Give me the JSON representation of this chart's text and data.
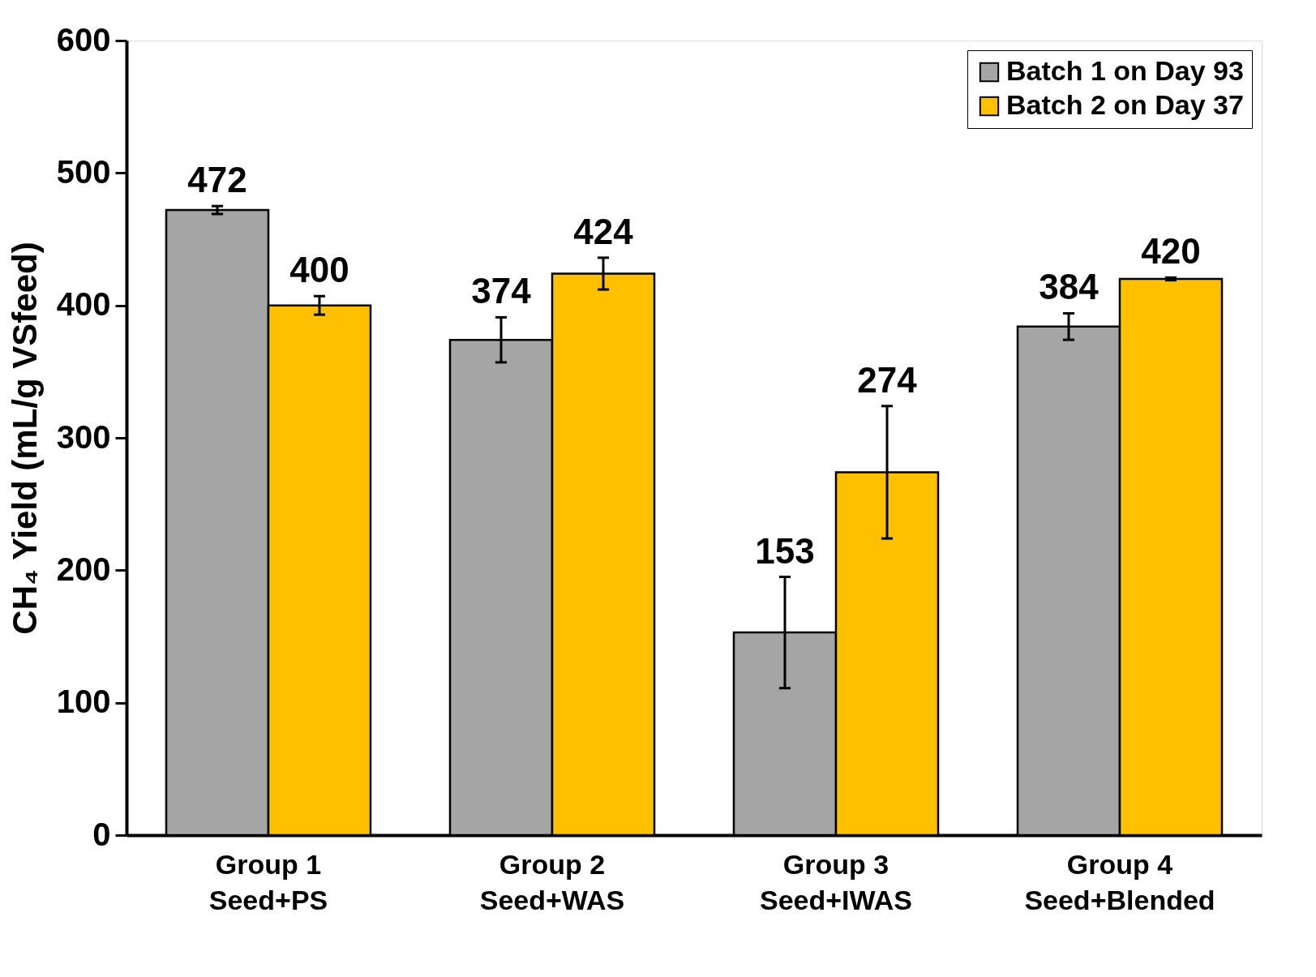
{
  "chart_data": {
    "type": "bar",
    "ylabel": "CH₄ Yield (mL/g VSfeed)",
    "categories": [
      "Group 1\nSeed+PS",
      "Group 2\nSeed+WAS",
      "Group 3\nSeed+IWAS",
      "Group 4\nSeed+Blended"
    ],
    "series": [
      {
        "name": "Batch 1 on Day 93",
        "color": "#a5a5a5",
        "values": [
          472,
          374,
          153,
          384
        ],
        "errors": [
          3,
          17,
          42,
          10
        ]
      },
      {
        "name": "Batch 2 on Day 37",
        "color": "#ffc000",
        "values": [
          400,
          424,
          274,
          420
        ],
        "errors": [
          7,
          12,
          50,
          1
        ]
      }
    ],
    "ylim": [
      0,
      600
    ],
    "yticks": [
      0,
      100,
      200,
      300,
      400,
      500,
      600
    ],
    "data_labels": true,
    "grid": false,
    "legend": "top right"
  }
}
